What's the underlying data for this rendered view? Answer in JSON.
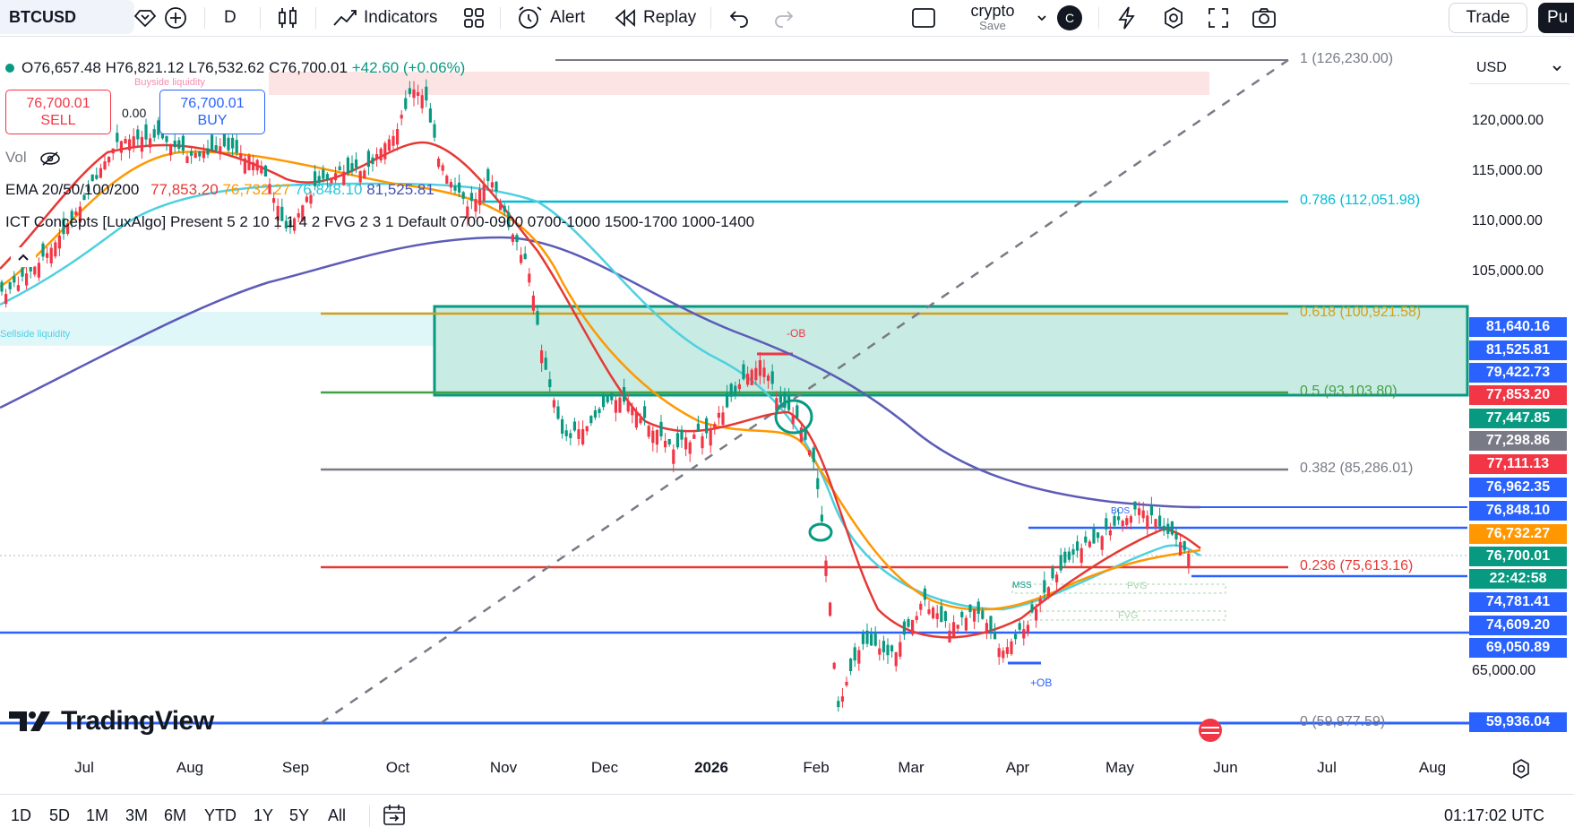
{
  "toolbar": {
    "symbol": "BTCUSD",
    "interval": "D",
    "indicators": "Indicators",
    "alert": "Alert",
    "replay": "Replay",
    "layout_name": "crypto",
    "layout_save": "Save",
    "avatar_letter": "C",
    "trade": "Trade",
    "publish": "Pu"
  },
  "legend": {
    "open": "O76,657.48",
    "high": "H76,821.12",
    "low": "L76,532.62",
    "close": "C76,700.01",
    "change": "+42.60 (+0.06%)",
    "sell_price": "76,700.01",
    "sell_label": "SELL",
    "spread": "0.00",
    "buy_price": "76,700.01",
    "buy_label": "BUY",
    "vol": "Vol",
    "ema_label": "EMA 20/50/100/200",
    "ema20": "77,853.20",
    "ema50": "76,732.27",
    "ema100": "76,848.10",
    "ema200": "81,525.81",
    "ict": "ICT Concepts [LuxAlgo] Present 5 2 10 1 1 4 2 FVG 2 3 1 Default 0700-0900 0700-1000 1500-1700 1000-1400"
  },
  "annotations": {
    "buyside": "Buyside liquidity",
    "sellside": "Sellside liquidity",
    "ob_bear": "-OB",
    "ob_bull": "+OB",
    "bos": "BOS",
    "mss": "MSS",
    "fvg1": "FVG",
    "fvg2": "FVG"
  },
  "fib": [
    {
      "label": "1 (126,230.00)",
      "color": "#787b86"
    },
    {
      "label": "0.786 (112,051.98)",
      "color": "#00bcd4"
    },
    {
      "label": "0.618 (100,921.58)",
      "color": "#d4a017"
    },
    {
      "label": "0.5 (93,103.80)",
      "color": "#43a047"
    },
    {
      "label": "0.382 (85,286.01)",
      "color": "#787b86"
    },
    {
      "label": "0.236 (75,613.16)",
      "color": "#e53935"
    },
    {
      "label": "0 (59,977.59)",
      "color": "#787b86"
    }
  ],
  "price_axis": {
    "currency": "USD",
    "ticks": [
      "120,000.00",
      "115,000.00",
      "110,000.00",
      "105,000.00",
      "65,000.00"
    ],
    "tags": [
      {
        "text": "81,640.16",
        "color": "#2962ff"
      },
      {
        "text": "81,525.81",
        "color": "#2962ff"
      },
      {
        "text": "79,422.73",
        "color": "#2962ff"
      },
      {
        "text": "77,853.20",
        "color": "#f23645"
      },
      {
        "text": "77,447.85",
        "color": "#089981"
      },
      {
        "text": "77,298.86",
        "color": "#787b86"
      },
      {
        "text": "77,111.13",
        "color": "#f23645"
      },
      {
        "text": "76,962.35",
        "color": "#2962ff"
      },
      {
        "text": "76,848.10",
        "color": "#2962ff"
      },
      {
        "text": "76,732.27",
        "color": "#ff9800"
      },
      {
        "text": "76,700.01",
        "color": "#089981"
      },
      {
        "text": "22:42:58",
        "color": "#089981"
      },
      {
        "text": "74,781.41",
        "color": "#2962ff"
      },
      {
        "text": "74,609.20",
        "color": "#2962ff"
      },
      {
        "text": "69,050.89",
        "color": "#2962ff"
      },
      {
        "text": "59,936.04",
        "color": "#2962ff"
      }
    ]
  },
  "time_axis": [
    "Jul",
    "Aug",
    "Sep",
    "Oct",
    "Nov",
    "Dec",
    "2026",
    "Feb",
    "Mar",
    "Apr",
    "May",
    "Jun",
    "Jul",
    "Aug"
  ],
  "bottom": {
    "ranges": [
      "1D",
      "5D",
      "1M",
      "3M",
      "6M",
      "YTD",
      "1Y",
      "5Y",
      "All"
    ],
    "clock": "01:17:02 UTC"
  },
  "watermark": "TradingView"
}
